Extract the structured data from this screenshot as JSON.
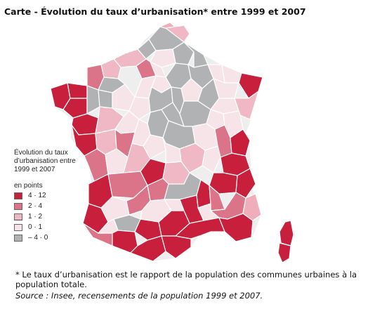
{
  "title": "Carte - Évolution du taux d’urbanisation* entre 1999 et 2007",
  "legend": {
    "title": "Évolution du taux d’urbanisation entre 1999 et 2007",
    "unit": "en points",
    "classes": [
      {
        "label": "4 · 12",
        "color": "#c8203c",
        "pattern": "solid"
      },
      {
        "label": "2 · 4",
        "color": "#db7489",
        "pattern": "solid"
      },
      {
        "label": "1 · 2",
        "color": "#f0aebb",
        "pattern": "hatch"
      },
      {
        "label": "0 · 1",
        "color": "#f6e4e8",
        "pattern": "solid"
      },
      {
        "label": "– 4 · 0",
        "color": "#b0b2b4",
        "pattern": "solid"
      }
    ]
  },
  "footnote": "* Le taux d’urbanisation est le rapport de la population des communes urbaines à la population totale.",
  "source": "Source : Insee, recensements de la population 1999 et 2007."
}
